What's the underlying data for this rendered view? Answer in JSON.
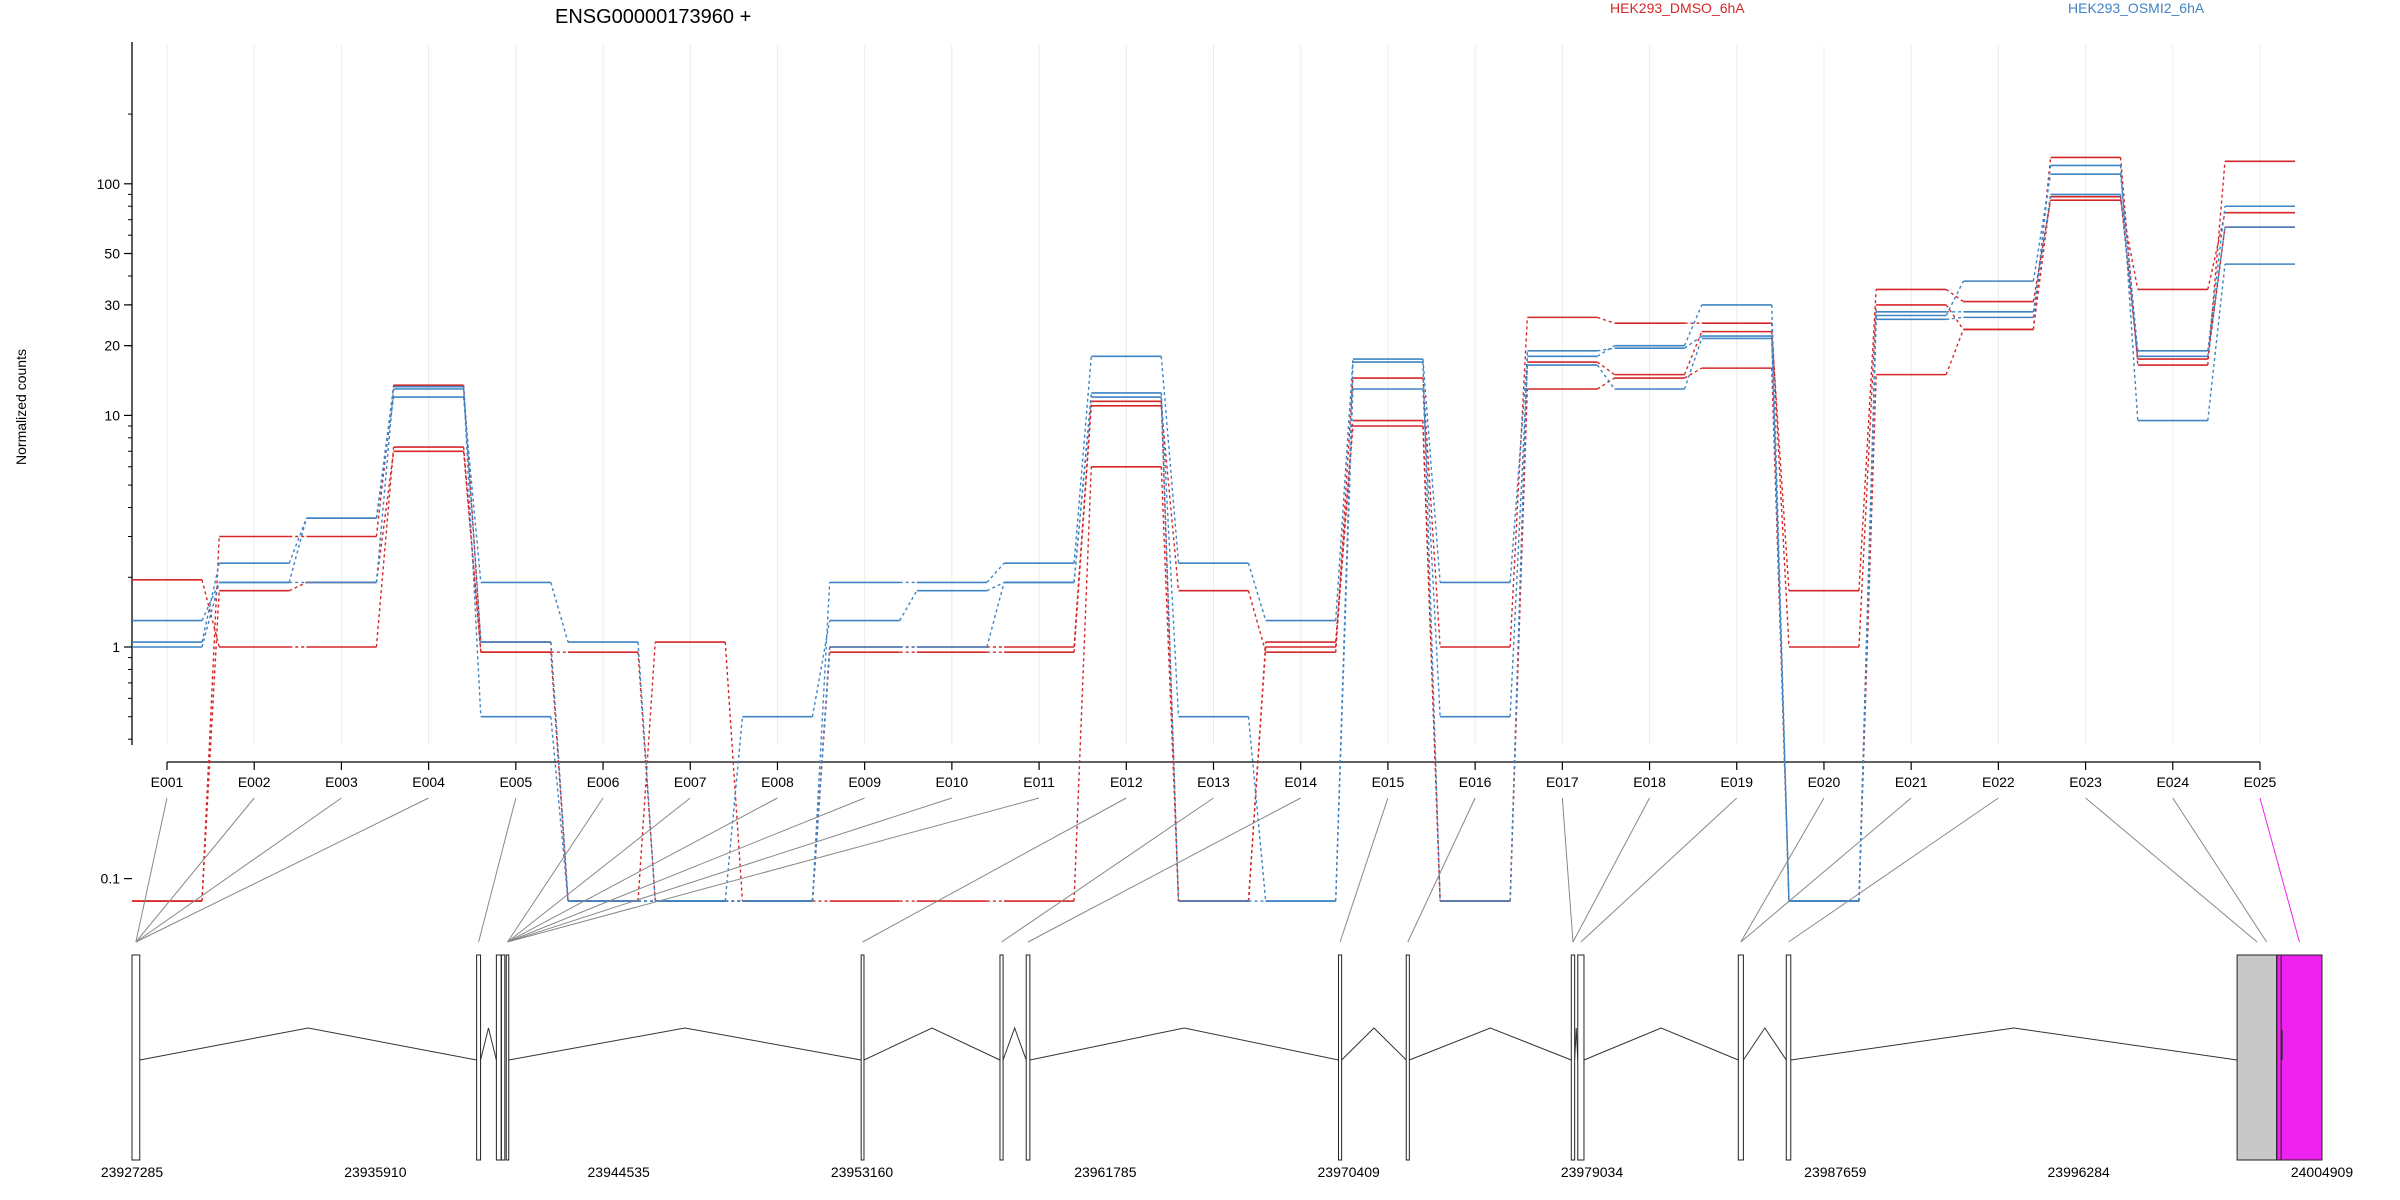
{
  "chart_data": {
    "type": "line",
    "title": "ENSG00000173960 +",
    "ylabel": "Normalized counts",
    "yscale": "log",
    "ytick_labels": [
      "0.1",
      "1",
      "10",
      "20",
      "30",
      "50",
      "100"
    ],
    "ytick_values": [
      0.1,
      1,
      10,
      20,
      30,
      50,
      100
    ],
    "categories": [
      "E001",
      "E002",
      "E003",
      "E004",
      "E005",
      "E006",
      "E007",
      "E008",
      "E009",
      "E010",
      "E011",
      "E012",
      "E013",
      "E014",
      "E015",
      "E016",
      "E017",
      "E018",
      "E019",
      "E020",
      "E021",
      "E022",
      "E023",
      "E024",
      "E025"
    ],
    "legend": [
      {
        "name": "HEK293_DMSO_6hA",
        "color": "#d62728"
      },
      {
        "name": "HEK293_OSMI2_6hA",
        "color": "#3f84c4"
      }
    ],
    "series": [
      {
        "group": "HEK293_DMSO_6hA",
        "color": "#d62728",
        "values": [
          0.08,
          3.0,
          3.0,
          13.5,
          1.05,
          0.08,
          1.05,
          0.08,
          1.0,
          1.0,
          1.0,
          11.5,
          0.08,
          1.05,
          9.5,
          0.08,
          17.0,
          15.0,
          23.0,
          1.75,
          35.0,
          31.0,
          85.0,
          35.0,
          75.0
        ]
      },
      {
        "group": "HEK293_DMSO_6hA",
        "color": "#d62728",
        "values": [
          0.08,
          1.75,
          1.9,
          7.0,
          0.95,
          0.95,
          0.08,
          0.08,
          0.95,
          0.95,
          0.95,
          11.0,
          1.75,
          0.95,
          14.5,
          1.0,
          26.5,
          25.0,
          25.0,
          1.0,
          30.0,
          23.5,
          130.0,
          16.5,
          125.0
        ]
      },
      {
        "group": "HEK293_DMSO_6hA",
        "color": "#d62728",
        "values": [
          1.95,
          1.0,
          1.0,
          7.3,
          0.95,
          0.08,
          0.08,
          0.08,
          0.08,
          0.08,
          0.08,
          6.0,
          0.08,
          1.0,
          9.0,
          0.08,
          13.0,
          14.5,
          16.0,
          0.08,
          15.0,
          23.5,
          88.0,
          17.5,
          65.0
        ]
      },
      {
        "group": "HEK293_OSMI2_6hA",
        "color": "#3f84c4",
        "values": [
          1.05,
          2.3,
          3.6,
          12.0,
          1.9,
          1.05,
          0.08,
          0.08,
          1.9,
          1.9,
          2.3,
          18.0,
          2.3,
          1.3,
          17.5,
          1.9,
          18.0,
          20.0,
          30.0,
          0.08,
          27.0,
          38.0,
          110.0,
          19.0,
          80.0
        ]
      },
      {
        "group": "HEK293_OSMI2_6hA",
        "color": "#3f84c4",
        "values": [
          1.3,
          1.9,
          1.9,
          13.0,
          1.05,
          0.08,
          0.08,
          0.5,
          1.3,
          1.75,
          1.9,
          12.5,
          0.5,
          0.08,
          13.0,
          0.5,
          16.5,
          13.0,
          21.5,
          0.08,
          26.0,
          26.5,
          120.0,
          9.5,
          45.0
        ]
      },
      {
        "group": "HEK293_OSMI2_6hA",
        "color": "#3f84c4",
        "values": [
          1.0,
          1.9,
          3.6,
          13.3,
          0.5,
          0.08,
          0.08,
          0.08,
          1.0,
          1.0,
          1.9,
          12.0,
          0.08,
          0.08,
          17.0,
          0.08,
          19.0,
          19.5,
          22.0,
          0.08,
          28.0,
          28.0,
          90.0,
          18.0,
          65.0
        ]
      }
    ],
    "gene_model": {
      "coordinate_labels": [
        "23927285",
        "23935910",
        "23944535",
        "23953160",
        "23961785",
        "23970409",
        "23979034",
        "23987659",
        "23996284",
        "24004909"
      ],
      "coordinate_values": [
        23927285,
        23935910,
        23944535,
        23953160,
        23961785,
        23970409,
        23979034,
        23987659,
        23996284,
        24004909
      ],
      "exons_genomic": [
        [
          23927285,
          23927560
        ],
        [
          23939500,
          23939640
        ],
        [
          23940200,
          23940370
        ],
        [
          23940380,
          23940500
        ],
        [
          23940550,
          23940640
        ],
        [
          23953130,
          23953230
        ],
        [
          23958050,
          23958160
        ],
        [
          23958980,
          23959110
        ],
        [
          23970050,
          23970160
        ],
        [
          23972450,
          23972560
        ],
        [
          23978300,
          23978420
        ],
        [
          23978530,
          23978750
        ],
        [
          23984220,
          23984400
        ],
        [
          23985920,
          23986080
        ],
        [
          24001900,
          24003300
        ],
        [
          24003310,
          24004909
        ]
      ],
      "highlighted_exon": "E025",
      "highlight_color": "#ee22ee",
      "exon_color": "#c8c8c8"
    }
  }
}
